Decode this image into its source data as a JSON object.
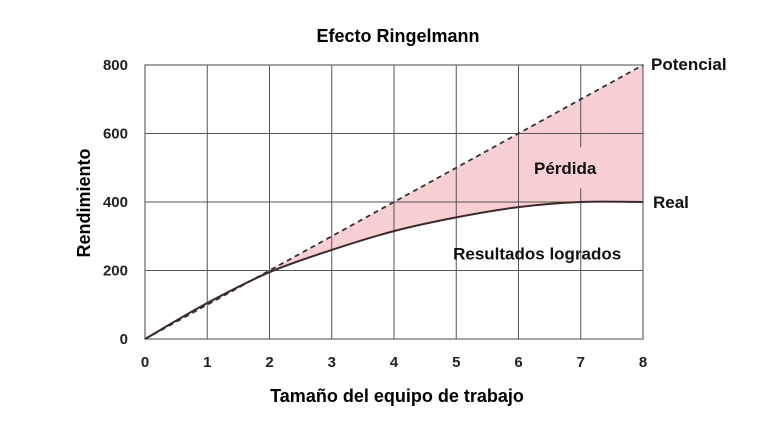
{
  "chart_data": {
    "type": "line",
    "title": "Efecto Ringelmann",
    "xlabel": "Tamaño del equipo de trabajo",
    "ylabel": "Rendimiento",
    "xlim": [
      0,
      8
    ],
    "ylim": [
      0,
      800
    ],
    "x_ticks": [
      0,
      1,
      2,
      3,
      4,
      5,
      6,
      7,
      8
    ],
    "y_ticks": [
      0,
      200,
      400,
      600,
      800
    ],
    "grid": true,
    "x": [
      0,
      1,
      2,
      3,
      4,
      5,
      6,
      7,
      8
    ],
    "series": [
      {
        "name": "Potencial",
        "style": "dashed",
        "color": "#333333",
        "values": [
          0,
          100,
          200,
          300,
          400,
          500,
          600,
          700,
          800
        ]
      },
      {
        "name": "Real",
        "style": "solid",
        "color": "#3a2a2e",
        "values": [
          0,
          105,
          195,
          260,
          315,
          355,
          385,
          400,
          400
        ]
      }
    ],
    "shaded_region": {
      "label": "Pérdida",
      "between": [
        "Potencial",
        "Real"
      ],
      "color": "#f8cfd3"
    },
    "annotations": {
      "loss_label": "Pérdida",
      "achieved_label": "Resultados logrados",
      "potential_label": "Potencial",
      "real_label": "Real"
    }
  }
}
